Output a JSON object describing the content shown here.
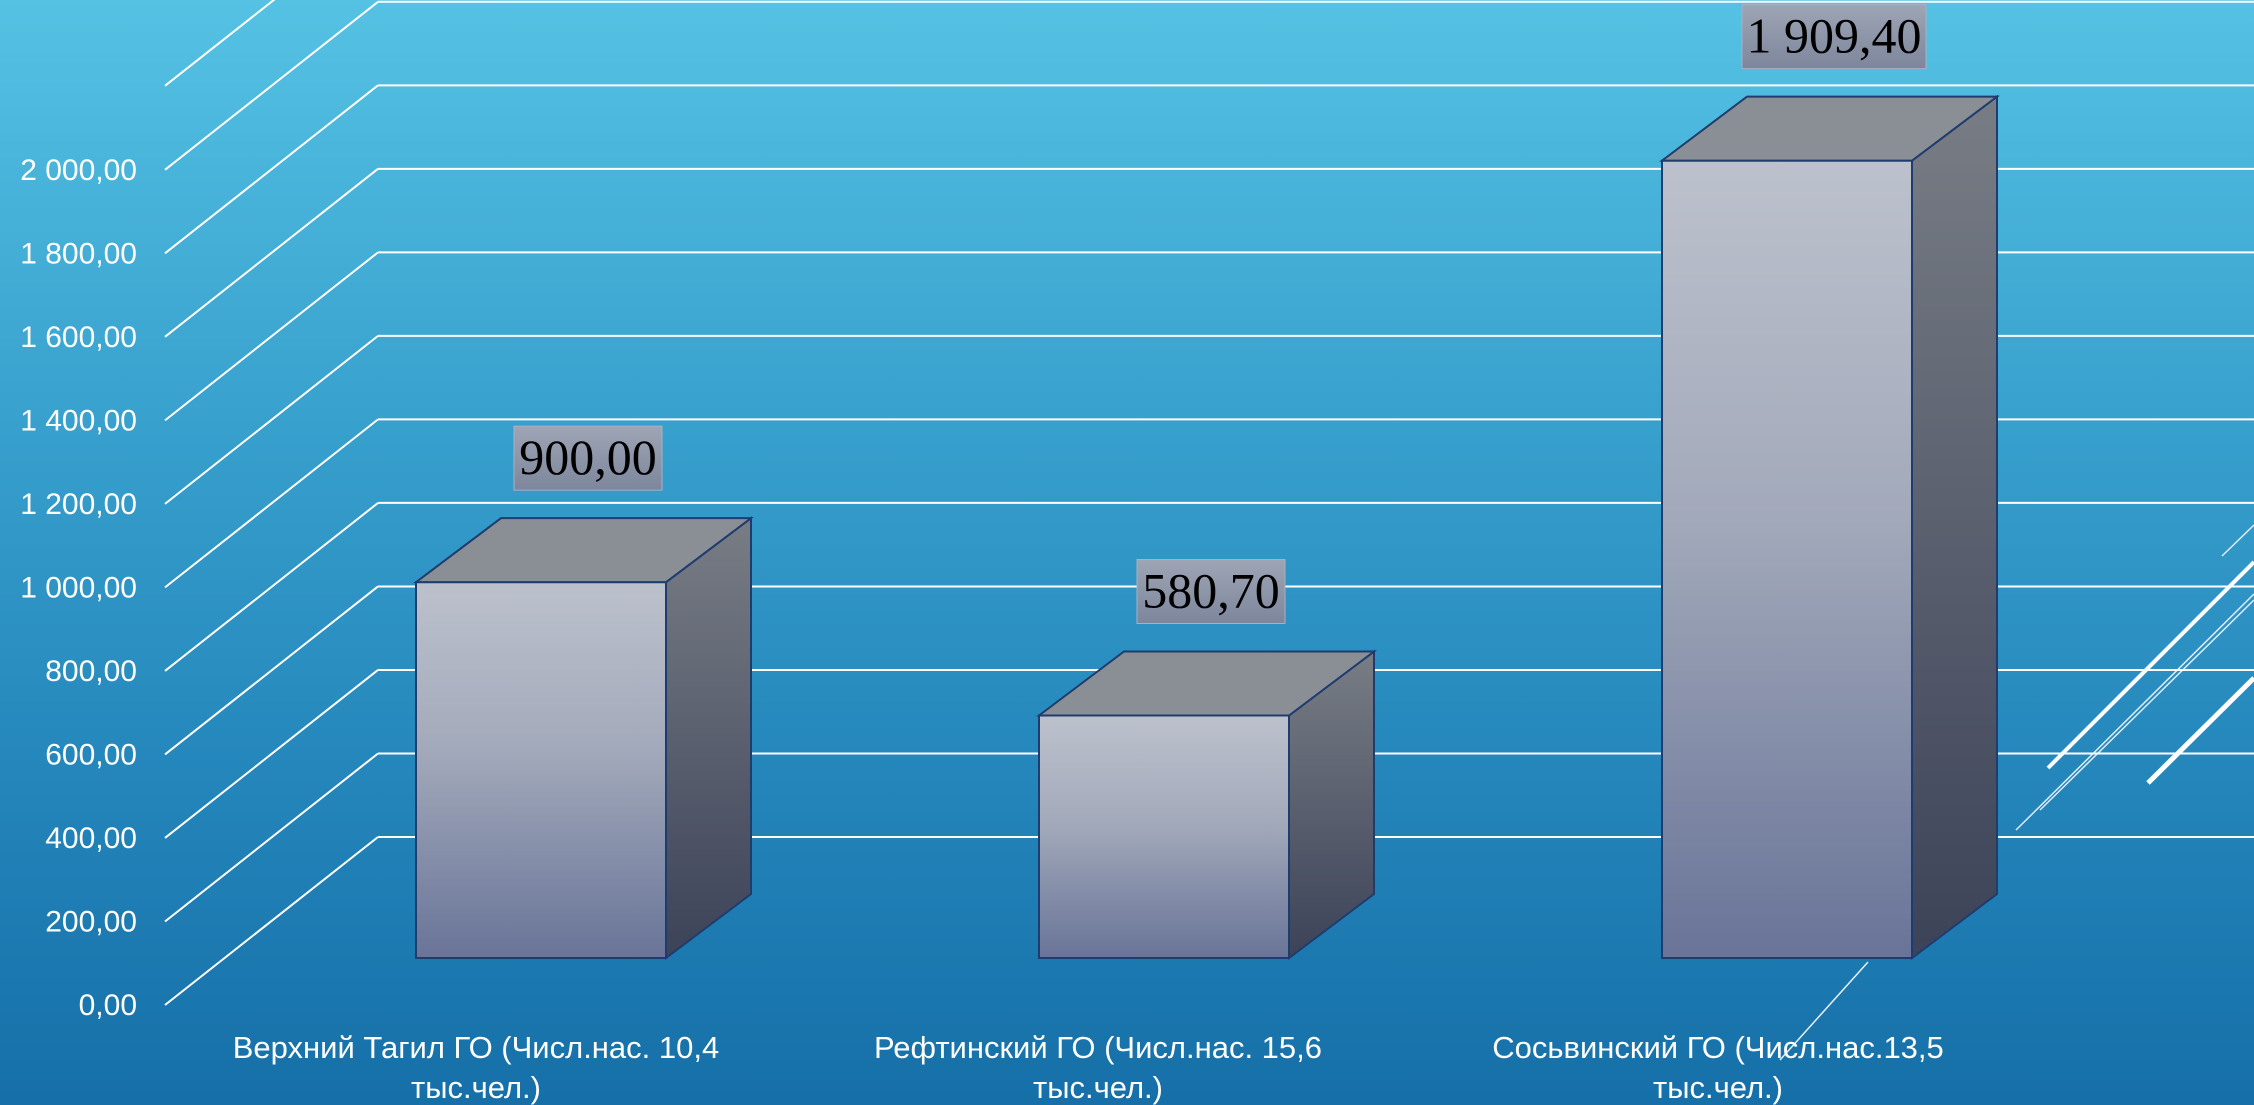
{
  "chart_data": {
    "type": "bar",
    "style": "3d-column",
    "title": "",
    "xlabel": "",
    "ylabel": "",
    "categories": [
      [
        "Верхний Тагил ГО (Числ.нас. 10,4",
        "тыс.чел.)"
      ],
      [
        "Рефтинский ГО (Числ.нас. 15,6",
        "тыс.чел.)"
      ],
      [
        "Сосьвинский ГО (Числ.нас.13,5",
        "тыс.чел.)"
      ]
    ],
    "values": [
      900.0,
      580.7,
      1909.4
    ],
    "data_labels": [
      "900,00",
      "580,70",
      "1 909,40"
    ],
    "ylim": [
      0,
      2000
    ],
    "y_ticks": [
      {
        "value": 0,
        "label": "0,00"
      },
      {
        "value": 200,
        "label": "200,00"
      },
      {
        "value": 400,
        "label": "400,00"
      },
      {
        "value": 600,
        "label": "600,00"
      },
      {
        "value": 800,
        "label": "800,00"
      },
      {
        "value": 1000,
        "label": "1 000,00"
      },
      {
        "value": 1200,
        "label": "1 200,00"
      },
      {
        "value": 1400,
        "label": "1 400,00"
      },
      {
        "value": 1600,
        "label": "1 600,00"
      },
      {
        "value": 1800,
        "label": "1 800,00"
      },
      {
        "value": 2000,
        "label": "2 000,00"
      }
    ],
    "grid": true,
    "legend": "none",
    "colors": {
      "bar_front_top": "#bcc1cc",
      "bar_front_bottom": "#697498",
      "bar_side_top": "#737880",
      "bar_side_bottom": "#3c4358",
      "bar_top": "#8a8e95",
      "bar_outline": "#1f3c6e",
      "label_box": "#8c94a6",
      "gridline": "#ffffff"
    }
  }
}
